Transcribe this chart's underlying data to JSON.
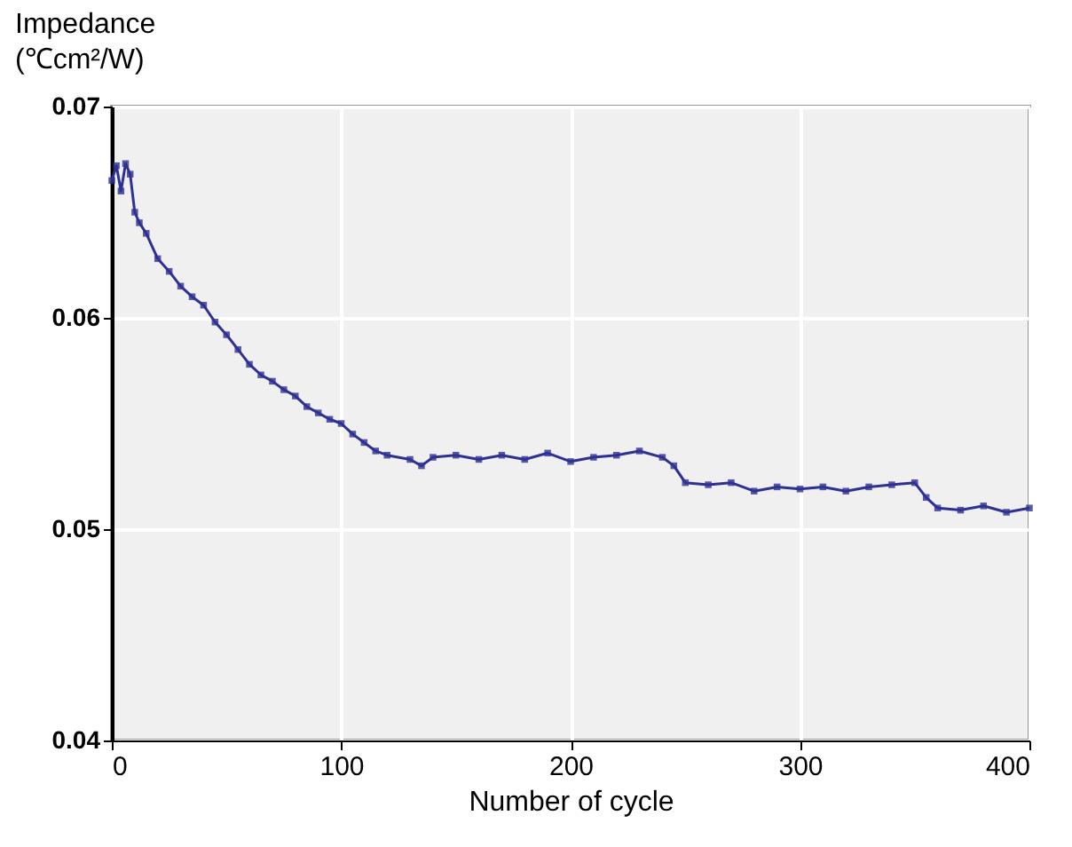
{
  "chart_data": {
    "type": "line",
    "xlabel": "Number of cycle",
    "ylabel": "Impedance\n(℃cm²/W)",
    "x": [
      0,
      2,
      4,
      6,
      8,
      10,
      12,
      15,
      20,
      25,
      30,
      35,
      40,
      45,
      50,
      55,
      60,
      65,
      70,
      75,
      80,
      85,
      90,
      95,
      100,
      105,
      110,
      115,
      120,
      130,
      135,
      140,
      150,
      160,
      170,
      180,
      190,
      200,
      210,
      220,
      230,
      240,
      245,
      250,
      260,
      270,
      280,
      290,
      300,
      310,
      320,
      330,
      340,
      350,
      355,
      360,
      370,
      380,
      390,
      400
    ],
    "series": [
      {
        "color": "#2e3192",
        "values": [
          0.0665,
          0.0672,
          0.066,
          0.0673,
          0.0668,
          0.065,
          0.0645,
          0.064,
          0.0628,
          0.0622,
          0.0615,
          0.061,
          0.0606,
          0.0598,
          0.0592,
          0.0585,
          0.0578,
          0.0573,
          0.057,
          0.0566,
          0.0563,
          0.0558,
          0.0555,
          0.0552,
          0.055,
          0.0545,
          0.0541,
          0.0537,
          0.0535,
          0.0533,
          0.053,
          0.0534,
          0.0535,
          0.0533,
          0.0535,
          0.0533,
          0.0536,
          0.0532,
          0.0534,
          0.0535,
          0.0537,
          0.0534,
          0.053,
          0.0522,
          0.0521,
          0.0522,
          0.0518,
          0.052,
          0.0519,
          0.052,
          0.0518,
          0.052,
          0.0521,
          0.0522,
          0.0515,
          0.051,
          0.0509,
          0.0511,
          0.0508,
          0.051
        ]
      }
    ],
    "xlim": [
      0,
      400
    ],
    "xticks": [
      0,
      100,
      200,
      300,
      400
    ],
    "ylim": [
      0.04,
      0.07
    ],
    "yticks": [
      0.04,
      0.05,
      0.06,
      0.07
    ],
    "grid": true,
    "marker": "square",
    "line_style": "solid"
  }
}
